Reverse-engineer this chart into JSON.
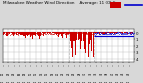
{
  "title": "Milwaukee Weather Wind Direction    Average: 11 (Old)",
  "title_fontsize": 3.0,
  "bg_color": "#d8d8d8",
  "plot_bg_color": "#ffffff",
  "bar_color": "#cc0000",
  "avg_line_color": "#0000cc",
  "dot_color": "#cc0000",
  "dot_color2": "#0000cc",
  "legend_bar_color": "#cc0000",
  "legend_line_color": "#0000cc",
  "ylim": [
    -4.5,
    0.5
  ],
  "xlim": [
    0,
    288
  ],
  "avg_value": -0.5,
  "avg_start": 200,
  "avg_end": 288,
  "n_points": 288,
  "vline_x1": 144,
  "vline_x2": 200,
  "grid_color": "#bbbbbb",
  "ytick_positions": [
    0,
    -1,
    -2,
    -3,
    -4
  ],
  "ytick_labels": [
    "0",
    "1",
    "2",
    "3",
    "4"
  ]
}
